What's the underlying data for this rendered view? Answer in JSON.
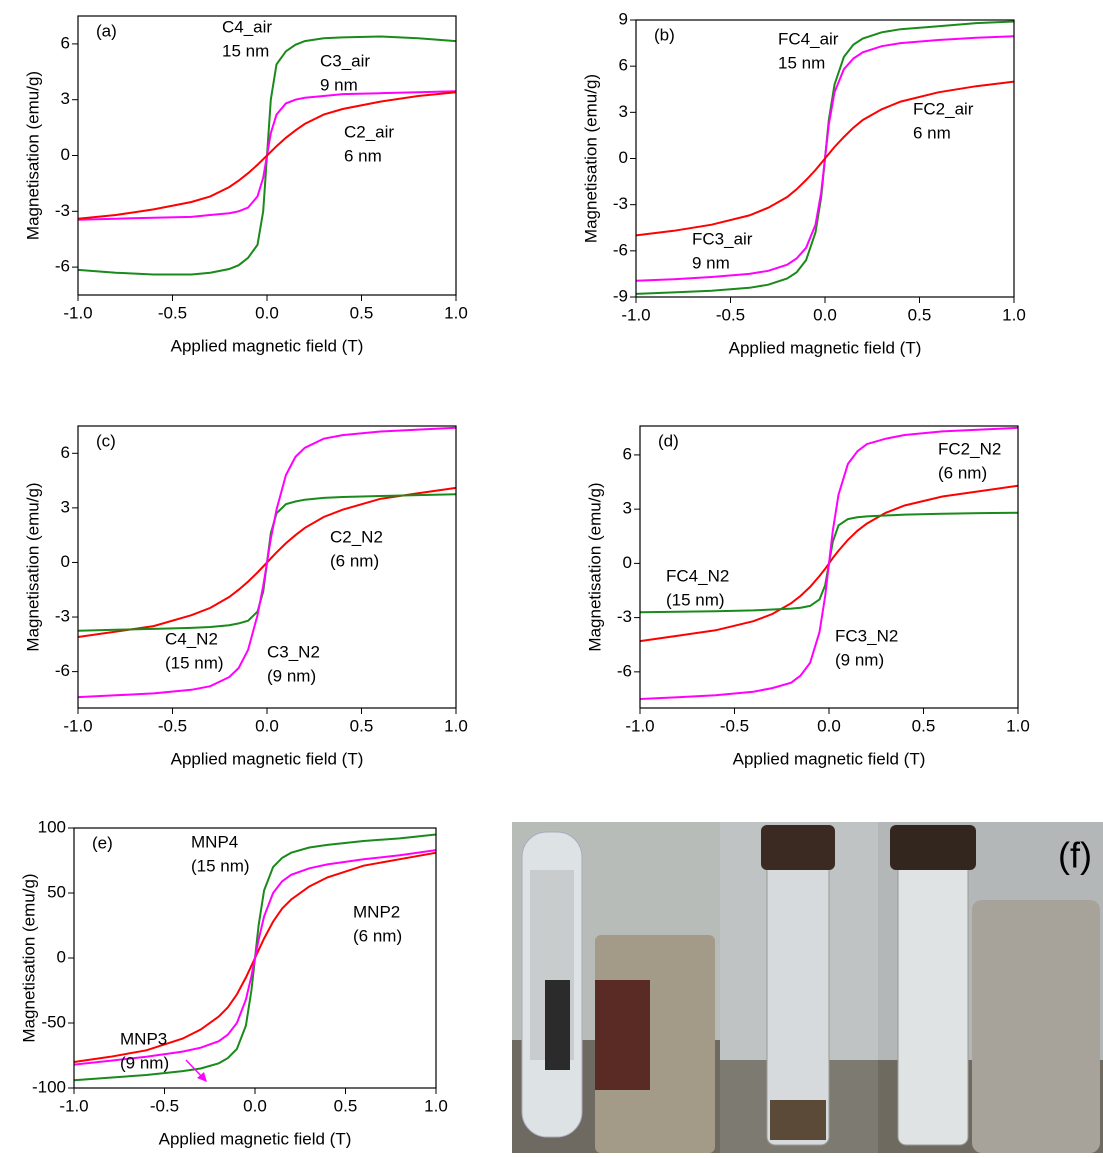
{
  "chart_data": [
    {
      "type": "line",
      "panel_label": "(a)",
      "xlabel": "Applied magnetic field (T)",
      "ylabel": "Magnetisation (emu/g)",
      "x": [
        -1,
        -0.8,
        -0.6,
        -0.4,
        -0.3,
        -0.2,
        -0.15,
        -0.1,
        -0.05,
        -0.02,
        0,
        0.02,
        0.05,
        0.1,
        0.15,
        0.2,
        0.3,
        0.4,
        0.6,
        0.8,
        1
      ],
      "xlim": [
        -1,
        1
      ],
      "ylim": [
        -7.5,
        7.5
      ],
      "xticks": [
        {
          "value": -1,
          "label": "-1.0"
        },
        {
          "value": -0.5,
          "label": "-0.5"
        },
        {
          "value": 0,
          "label": "0.0"
        },
        {
          "value": 0.5,
          "label": "0.5"
        },
        {
          "value": 1,
          "label": "1.0"
        }
      ],
      "yticks": [
        -6,
        -3,
        0,
        3,
        6
      ],
      "series": [
        {
          "name": "C4_air",
          "size_label": "15 nm",
          "color": "#1a8a1a",
          "values": [
            -6.15,
            -6.3,
            -6.4,
            -6.4,
            -6.3,
            -6.1,
            -5.9,
            -5.5,
            -4.8,
            -3,
            0,
            3,
            4.9,
            5.6,
            5.95,
            6.15,
            6.3,
            6.35,
            6.4,
            6.3,
            6.15
          ]
        },
        {
          "name": "C3_air",
          "size_label": "9 nm",
          "color": "#ff00ff",
          "values": [
            -3.45,
            -3.4,
            -3.35,
            -3.3,
            -3.2,
            -3.1,
            -3,
            -2.8,
            -2.2,
            -1.2,
            0,
            1.2,
            2.2,
            2.8,
            3,
            3.1,
            3.2,
            3.3,
            3.35,
            3.4,
            3.45
          ]
        },
        {
          "name": "C2_air",
          "size_label": "6 nm",
          "color": "#ff0000",
          "values": [
            -3.4,
            -3.2,
            -2.9,
            -2.5,
            -2.2,
            -1.7,
            -1.35,
            -0.95,
            -0.5,
            -0.2,
            0,
            0.2,
            0.5,
            0.95,
            1.35,
            1.7,
            2.2,
            2.5,
            2.9,
            3.2,
            3.4
          ]
        }
      ]
    },
    {
      "type": "line",
      "panel_label": "(b)",
      "xlabel": "Applied magnetic field (T)",
      "ylabel": "Magnetisation (emu/g)",
      "x": [
        -1,
        -0.8,
        -0.6,
        -0.4,
        -0.3,
        -0.2,
        -0.15,
        -0.1,
        -0.05,
        -0.02,
        0,
        0.02,
        0.05,
        0.1,
        0.15,
        0.2,
        0.3,
        0.4,
        0.6,
        0.8,
        1
      ],
      "xlim": [
        -1,
        1
      ],
      "ylim": [
        -9,
        9
      ],
      "xticks": [
        {
          "value": -1,
          "label": "-1.0"
        },
        {
          "value": -0.5,
          "label": "-0.5"
        },
        {
          "value": 0,
          "label": "0.0"
        },
        {
          "value": 0.5,
          "label": "0.5"
        },
        {
          "value": 1,
          "label": "1.0"
        }
      ],
      "yticks": [
        -9,
        -6,
        -3,
        0,
        3,
        6,
        9
      ],
      "series": [
        {
          "name": "FC4_air",
          "size_label": "15 nm",
          "color": "#1a8a1a",
          "values": [
            -8.8,
            -8.7,
            -8.6,
            -8.4,
            -8.2,
            -7.8,
            -7.4,
            -6.6,
            -4.8,
            -2.5,
            0,
            2.5,
            4.8,
            6.6,
            7.4,
            7.8,
            8.2,
            8.4,
            8.6,
            8.8,
            8.9
          ]
        },
        {
          "name": "FC3_air",
          "size_label": "9 nm",
          "color": "#ff00ff",
          "values": [
            -7.95,
            -7.85,
            -7.7,
            -7.5,
            -7.3,
            -6.9,
            -6.5,
            -5.8,
            -4.3,
            -2.2,
            0,
            2.2,
            4.3,
            5.8,
            6.5,
            6.9,
            7.3,
            7.5,
            7.7,
            7.85,
            7.95
          ]
        },
        {
          "name": "FC2_air",
          "size_label": "6 nm",
          "color": "#ff0000",
          "values": [
            -5,
            -4.7,
            -4.3,
            -3.7,
            -3.2,
            -2.5,
            -2,
            -1.4,
            -0.75,
            -0.3,
            0,
            0.3,
            0.75,
            1.4,
            2,
            2.5,
            3.2,
            3.7,
            4.3,
            4.7,
            5
          ]
        }
      ]
    },
    {
      "type": "line",
      "panel_label": "(c)",
      "xlabel": "Applied magnetic field (T)",
      "ylabel": "Magnetisation (emu/g)",
      "x": [
        -1,
        -0.8,
        -0.6,
        -0.4,
        -0.3,
        -0.2,
        -0.15,
        -0.1,
        -0.05,
        -0.02,
        0,
        0.02,
        0.05,
        0.1,
        0.15,
        0.2,
        0.3,
        0.4,
        0.6,
        0.8,
        1
      ],
      "xlim": [
        -1,
        1
      ],
      "ylim": [
        -8,
        7.5
      ],
      "xticks": [
        {
          "value": -1,
          "label": "-1.0"
        },
        {
          "value": -0.5,
          "label": "-0.5"
        },
        {
          "value": 0,
          "label": "0.0"
        },
        {
          "value": 0.5,
          "label": "0.5"
        },
        {
          "value": 1,
          "label": "1.0"
        }
      ],
      "yticks": [
        -6,
        -3,
        0,
        3,
        6
      ],
      "series": [
        {
          "name": "C2_N2",
          "size_label": "(6 nm)",
          "color": "#ff0000",
          "values": [
            -4.1,
            -3.8,
            -3.5,
            -2.9,
            -2.5,
            -1.9,
            -1.5,
            -1.05,
            -0.55,
            -0.22,
            0,
            0.22,
            0.55,
            1.05,
            1.5,
            1.9,
            2.5,
            2.9,
            3.5,
            3.8,
            4.1
          ]
        },
        {
          "name": "C4_N2",
          "size_label": "(15 nm)",
          "color": "#1a8a1a",
          "values": [
            -3.75,
            -3.7,
            -3.65,
            -3.6,
            -3.55,
            -3.45,
            -3.35,
            -3.2,
            -2.7,
            -1.6,
            0,
            1.6,
            2.7,
            3.2,
            3.35,
            3.45,
            3.55,
            3.6,
            3.65,
            3.7,
            3.75
          ]
        },
        {
          "name": "C3_N2",
          "size_label": "(9 nm)",
          "color": "#ff00ff",
          "values": [
            -7.4,
            -7.3,
            -7.2,
            -7,
            -6.8,
            -6.3,
            -5.8,
            -4.8,
            -2.9,
            -1.3,
            0,
            1.3,
            2.9,
            4.8,
            5.8,
            6.3,
            6.8,
            7,
            7.2,
            7.3,
            7.4
          ]
        }
      ]
    },
    {
      "type": "line",
      "panel_label": "(d)",
      "xlabel": "Applied magnetic field (T)",
      "ylabel": "Magnetisation (emu/g)",
      "x": [
        -1,
        -0.8,
        -0.6,
        -0.4,
        -0.3,
        -0.2,
        -0.15,
        -0.1,
        -0.05,
        -0.02,
        0,
        0.02,
        0.05,
        0.1,
        0.15,
        0.2,
        0.3,
        0.4,
        0.6,
        0.8,
        1
      ],
      "xlim": [
        -1,
        1
      ],
      "ylim": [
        -8,
        7.6
      ],
      "xticks": [
        {
          "value": -1,
          "label": "-1.0"
        },
        {
          "value": -0.5,
          "label": "-0.5"
        },
        {
          "value": 0,
          "label": "0.0"
        },
        {
          "value": 0.5,
          "label": "0.5"
        },
        {
          "value": 1,
          "label": "1.0"
        }
      ],
      "yticks": [
        -6,
        -3,
        0,
        3,
        6
      ],
      "series": [
        {
          "name": "FC2_N2",
          "size_label": "(6 nm)",
          "color": "#ff0000",
          "values": [
            -4.3,
            -4,
            -3.7,
            -3.2,
            -2.8,
            -2.2,
            -1.8,
            -1.3,
            -0.7,
            -0.3,
            0,
            0.3,
            0.7,
            1.3,
            1.8,
            2.2,
            2.8,
            3.2,
            3.7,
            4,
            4.3
          ]
        },
        {
          "name": "FC4_N2",
          "size_label": "(15 nm)",
          "color": "#1a8a1a",
          "values": [
            -2.7,
            -2.68,
            -2.65,
            -2.6,
            -2.55,
            -2.5,
            -2.45,
            -2.35,
            -2,
            -1.2,
            0,
            1.2,
            2.1,
            2.45,
            2.55,
            2.6,
            2.65,
            2.7,
            2.75,
            2.78,
            2.8
          ]
        },
        {
          "name": "FC3_N2",
          "size_label": "(9 nm)",
          "color": "#ff00ff",
          "values": [
            -7.5,
            -7.4,
            -7.3,
            -7.1,
            -6.9,
            -6.6,
            -6.2,
            -5.5,
            -3.8,
            -1.8,
            0,
            1.8,
            3.8,
            5.5,
            6.2,
            6.6,
            6.9,
            7.1,
            7.3,
            7.4,
            7.5
          ]
        }
      ]
    },
    {
      "type": "line",
      "panel_label": "(e)",
      "xlabel": "Applied magnetic field (T)",
      "ylabel": "Magnetisation (emu/g)",
      "x": [
        -1,
        -0.8,
        -0.6,
        -0.4,
        -0.3,
        -0.2,
        -0.15,
        -0.1,
        -0.05,
        -0.02,
        0,
        0.02,
        0.05,
        0.1,
        0.15,
        0.2,
        0.3,
        0.4,
        0.6,
        0.8,
        1
      ],
      "xlim": [
        -1,
        1
      ],
      "ylim": [
        -100,
        100
      ],
      "xticks": [
        {
          "value": -1,
          "label": "-1.0"
        },
        {
          "value": -0.5,
          "label": "-0.5"
        },
        {
          "value": 0,
          "label": "0.0"
        },
        {
          "value": 0.5,
          "label": "0.5"
        },
        {
          "value": 1,
          "label": "1.0"
        }
      ],
      "yticks": [
        -100,
        -50,
        0,
        50,
        100
      ],
      "series": [
        {
          "name": "MNP4",
          "size_label": "(15 nm)",
          "color": "#1a8a1a",
          "values": [
            -94,
            -92,
            -90,
            -87,
            -85,
            -81,
            -77,
            -70,
            -52,
            -25,
            0,
            25,
            52,
            70,
            77,
            81,
            85,
            87,
            90,
            92,
            95
          ]
        },
        {
          "name": "MNP2",
          "size_label": "(6 nm)",
          "color": "#ff0000",
          "values": [
            -80,
            -76,
            -71,
            -62,
            -55,
            -45,
            -38,
            -28,
            -15,
            -6,
            0,
            6,
            15,
            28,
            38,
            45,
            55,
            62,
            71,
            76,
            81
          ]
        },
        {
          "name": "MNP3",
          "size_label": "(9 nm)",
          "color": "#ff00ff",
          "values": [
            -82,
            -79,
            -76,
            -72,
            -69,
            -64,
            -59,
            -50,
            -32,
            -14,
            0,
            14,
            32,
            50,
            59,
            64,
            69,
            72,
            76,
            79,
            83
          ]
        }
      ]
    }
  ],
  "photo": {
    "label": "(f)"
  }
}
